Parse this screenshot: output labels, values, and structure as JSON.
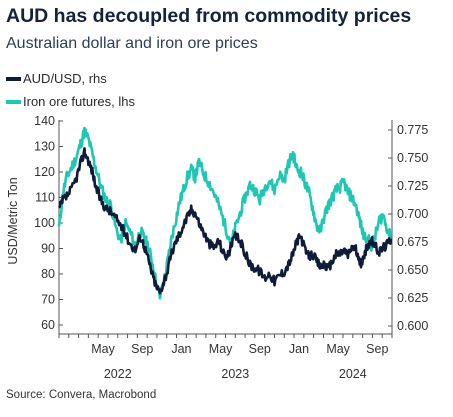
{
  "title": "AUD has decoupled from commodity prices",
  "subtitle": "Australian dollar and iron ore prices",
  "legend": {
    "aud": "AUD/USD, rhs",
    "iron": "Iron ore futures, lhs"
  },
  "source": "Source: Convera, Macrobond",
  "colors": {
    "aud": "#0e1c3a",
    "iron": "#1ec7b4",
    "axis": "#555555"
  },
  "chart_data": {
    "type": "line",
    "ylabel": "USD/Metric Ton",
    "left_axis": {
      "min": 60,
      "max": 140,
      "ticks": [
        "60",
        "70",
        "80",
        "90",
        "100",
        "110",
        "120",
        "130",
        "140"
      ]
    },
    "right_axis": {
      "min": 0.6,
      "max": 0.775,
      "ticks": [
        "0.600",
        "0.625",
        "0.650",
        "0.675",
        "0.700",
        "0.725",
        "0.750",
        "0.775"
      ]
    },
    "x_range": [
      "2022-01",
      "2024-10"
    ],
    "month_ticks": [
      {
        "label": "May",
        "t": 4.5
      },
      {
        "label": "Sep",
        "t": 8.5
      },
      {
        "label": "Jan",
        "t": 12.5
      },
      {
        "label": "May",
        "t": 16.5
      },
      {
        "label": "Sep",
        "t": 20.5
      },
      {
        "label": "Jan",
        "t": 24.5
      },
      {
        "label": "May",
        "t": 28.5
      },
      {
        "label": "Sep",
        "t": 32.5
      }
    ],
    "year_labels": [
      {
        "label": "2022",
        "t": 6
      },
      {
        "label": "2023",
        "t": 18
      },
      {
        "label": "2024",
        "t": 30
      }
    ],
    "series": [
      {
        "name": "Iron ore futures, lhs",
        "axis": "left",
        "points": [
          [
            0.0,
            98
          ],
          [
            0.4,
            112
          ],
          [
            0.8,
            118
          ],
          [
            1.3,
            122
          ],
          [
            1.8,
            126
          ],
          [
            2.2,
            131
          ],
          [
            2.6,
            136
          ],
          [
            3.0,
            133
          ],
          [
            3.4,
            127
          ],
          [
            3.8,
            121
          ],
          [
            4.3,
            114
          ],
          [
            4.8,
            109
          ],
          [
            5.3,
            107
          ],
          [
            5.8,
            98
          ],
          [
            6.3,
            93
          ],
          [
            6.8,
            100
          ],
          [
            7.3,
            96
          ],
          [
            7.8,
            91
          ],
          [
            8.3,
            97
          ],
          [
            8.7,
            94
          ],
          [
            9.1,
            91
          ],
          [
            9.5,
            85
          ],
          [
            9.9,
            77
          ],
          [
            10.3,
            71
          ],
          [
            10.7,
            77
          ],
          [
            11.1,
            85
          ],
          [
            11.5,
            94
          ],
          [
            11.9,
            101
          ],
          [
            12.3,
            108
          ],
          [
            12.7,
            113
          ],
          [
            13.1,
            118
          ],
          [
            13.5,
            121
          ],
          [
            13.9,
            118
          ],
          [
            14.3,
            124
          ],
          [
            14.8,
            119
          ],
          [
            15.3,
            116
          ],
          [
            15.8,
            112
          ],
          [
            16.3,
            107
          ],
          [
            16.8,
            101
          ],
          [
            17.2,
            96
          ],
          [
            17.6,
            92
          ],
          [
            18.0,
            98
          ],
          [
            18.5,
            104
          ],
          [
            19.0,
            110
          ],
          [
            19.5,
            115
          ],
          [
            20.0,
            113
          ],
          [
            20.5,
            109
          ],
          [
            21.0,
            114
          ],
          [
            21.5,
            117
          ],
          [
            22.0,
            113
          ],
          [
            22.5,
            119
          ],
          [
            23.0,
            117
          ],
          [
            23.5,
            124
          ],
          [
            23.9,
            127
          ],
          [
            24.3,
            121
          ],
          [
            24.7,
            120
          ],
          [
            25.1,
            116
          ],
          [
            25.5,
            112
          ],
          [
            25.9,
            106
          ],
          [
            26.3,
            99
          ],
          [
            26.7,
            97
          ],
          [
            27.1,
            103
          ],
          [
            27.5,
            107
          ],
          [
            27.9,
            110
          ],
          [
            28.3,
            113
          ],
          [
            28.7,
            114
          ],
          [
            29.1,
            116
          ],
          [
            29.5,
            112
          ],
          [
            29.9,
            110
          ],
          [
            30.3,
            107
          ],
          [
            30.7,
            101
          ],
          [
            31.1,
            95
          ],
          [
            31.5,
            94
          ],
          [
            31.9,
            91
          ],
          [
            32.3,
            95
          ],
          [
            32.7,
            101
          ],
          [
            33.1,
            103
          ],
          [
            33.5,
            98
          ],
          [
            33.9,
            94
          ]
        ]
      },
      {
        "name": "AUD/USD, rhs",
        "axis": "right",
        "points": [
          [
            0.0,
            0.704
          ],
          [
            0.4,
            0.712
          ],
          [
            0.8,
            0.716
          ],
          [
            1.3,
            0.722
          ],
          [
            1.8,
            0.733
          ],
          [
            2.2,
            0.745
          ],
          [
            2.6,
            0.756
          ],
          [
            3.0,
            0.748
          ],
          [
            3.4,
            0.738
          ],
          [
            3.8,
            0.723
          ],
          [
            4.3,
            0.712
          ],
          [
            4.8,
            0.705
          ],
          [
            5.3,
            0.702
          ],
          [
            5.8,
            0.696
          ],
          [
            6.3,
            0.69
          ],
          [
            6.8,
            0.682
          ],
          [
            7.3,
            0.673
          ],
          [
            7.8,
            0.668
          ],
          [
            8.3,
            0.68
          ],
          [
            8.7,
            0.672
          ],
          [
            9.1,
            0.66
          ],
          [
            9.5,
            0.647
          ],
          [
            9.9,
            0.636
          ],
          [
            10.3,
            0.63
          ],
          [
            10.7,
            0.64
          ],
          [
            11.1,
            0.65
          ],
          [
            11.5,
            0.665
          ],
          [
            11.9,
            0.675
          ],
          [
            12.3,
            0.682
          ],
          [
            12.7,
            0.69
          ],
          [
            13.1,
            0.697
          ],
          [
            13.5,
            0.704
          ],
          [
            13.9,
            0.701
          ],
          [
            14.3,
            0.692
          ],
          [
            14.8,
            0.683
          ],
          [
            15.3,
            0.674
          ],
          [
            15.8,
            0.67
          ],
          [
            16.3,
            0.676
          ],
          [
            16.8,
            0.665
          ],
          [
            17.2,
            0.662
          ],
          [
            17.6,
            0.672
          ],
          [
            18.0,
            0.68
          ],
          [
            18.5,
            0.676
          ],
          [
            19.0,
            0.665
          ],
          [
            19.5,
            0.655
          ],
          [
            20.0,
            0.652
          ],
          [
            20.5,
            0.649
          ],
          [
            21.0,
            0.643
          ],
          [
            21.5,
            0.647
          ],
          [
            22.0,
            0.64
          ],
          [
            22.5,
            0.645
          ],
          [
            23.0,
            0.649
          ],
          [
            23.5,
            0.656
          ],
          [
            23.9,
            0.665
          ],
          [
            24.3,
            0.676
          ],
          [
            24.7,
            0.68
          ],
          [
            25.1,
            0.668
          ],
          [
            25.5,
            0.662
          ],
          [
            25.9,
            0.664
          ],
          [
            26.3,
            0.658
          ],
          [
            26.7,
            0.653
          ],
          [
            27.1,
            0.656
          ],
          [
            27.5,
            0.65
          ],
          [
            27.9,
            0.658
          ],
          [
            28.3,
            0.664
          ],
          [
            28.7,
            0.665
          ],
          [
            29.1,
            0.668
          ],
          [
            29.5,
            0.663
          ],
          [
            29.9,
            0.671
          ],
          [
            30.3,
            0.669
          ],
          [
            30.7,
            0.655
          ],
          [
            31.1,
            0.66
          ],
          [
            31.5,
            0.672
          ],
          [
            31.9,
            0.676
          ],
          [
            32.3,
            0.671
          ],
          [
            32.7,
            0.666
          ],
          [
            33.1,
            0.67
          ],
          [
            33.5,
            0.673
          ],
          [
            33.9,
            0.678
          ]
        ]
      }
    ]
  }
}
